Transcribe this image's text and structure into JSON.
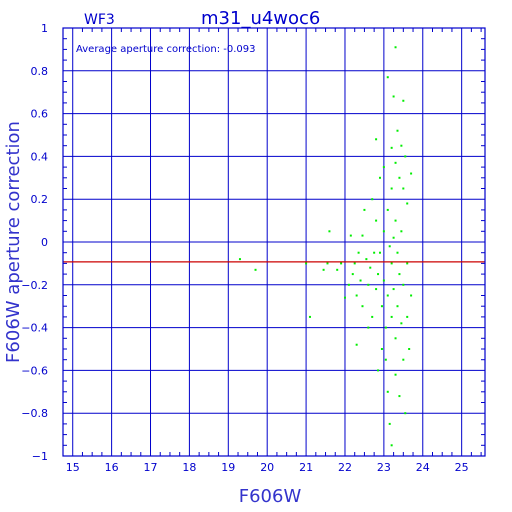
{
  "header": {
    "camera": "WF3",
    "title": "m31_u4woc6"
  },
  "annotation": "Average aperture correction: -0.093",
  "chart_data": {
    "type": "scatter",
    "title": "m31_u4woc6",
    "xlabel": "F606W",
    "ylabel": "F606W aperture correction",
    "xlim": [
      14.75,
      25.6
    ],
    "ylim": [
      -1,
      1
    ],
    "grid": true,
    "x_ticks": [
      "15",
      "16",
      "17",
      "18",
      "19",
      "20",
      "21",
      "22",
      "23",
      "24",
      "25"
    ],
    "y_ticks": [
      "1",
      "0.8",
      "0.6",
      "0.4",
      "0.2",
      "0",
      "−0.2",
      "−0.4",
      "−0.6",
      "−0.8",
      "−1"
    ],
    "reference_line": {
      "y": -0.093,
      "color": "#cc0000"
    },
    "colors": {
      "axes": "#0000cc",
      "points": "#00ee00",
      "line": "#cc0000"
    },
    "series": [
      {
        "points": [
          [
            19.3,
            -0.08
          ],
          [
            19.7,
            -0.13
          ],
          [
            21.0,
            -0.1
          ],
          [
            21.1,
            -0.35
          ],
          [
            21.45,
            -0.13
          ],
          [
            21.55,
            -0.1
          ],
          [
            21.6,
            0.05
          ],
          [
            21.8,
            -0.13
          ],
          [
            21.9,
            -0.1
          ],
          [
            22.0,
            -0.26
          ],
          [
            22.1,
            -0.2
          ],
          [
            22.15,
            0.03
          ],
          [
            22.2,
            -0.15
          ],
          [
            22.25,
            -0.1
          ],
          [
            22.3,
            -0.48
          ],
          [
            22.3,
            -0.25
          ],
          [
            22.35,
            -0.05
          ],
          [
            22.4,
            -0.18
          ],
          [
            22.45,
            0.03
          ],
          [
            22.45,
            -0.3
          ],
          [
            22.5,
            0.15
          ],
          [
            22.55,
            -0.08
          ],
          [
            22.6,
            -0.4
          ],
          [
            22.6,
            -0.2
          ],
          [
            22.65,
            -0.12
          ],
          [
            22.7,
            0.2
          ],
          [
            22.7,
            -0.35
          ],
          [
            22.75,
            -0.05
          ],
          [
            22.8,
            0.48
          ],
          [
            22.8,
            0.1
          ],
          [
            22.8,
            -0.22
          ],
          [
            22.85,
            -0.6
          ],
          [
            22.85,
            -0.15
          ],
          [
            22.9,
            0.3
          ],
          [
            22.9,
            -0.05
          ],
          [
            22.95,
            -0.3
          ],
          [
            22.95,
            -0.5
          ],
          [
            23.0,
            0.35
          ],
          [
            23.0,
            0.05
          ],
          [
            23.0,
            -0.18
          ],
          [
            23.05,
            -0.4
          ],
          [
            23.05,
            -0.55
          ],
          [
            23.1,
            0.77
          ],
          [
            23.1,
            0.15
          ],
          [
            23.1,
            -0.25
          ],
          [
            23.1,
            -0.7
          ],
          [
            23.15,
            -0.02
          ],
          [
            23.15,
            -0.85
          ],
          [
            23.2,
            0.44
          ],
          [
            23.2,
            0.25
          ],
          [
            23.2,
            -0.1
          ],
          [
            23.2,
            -0.35
          ],
          [
            23.2,
            -0.95
          ],
          [
            23.25,
            0.68
          ],
          [
            23.25,
            0.02
          ],
          [
            23.25,
            -0.22
          ],
          [
            23.3,
            0.91
          ],
          [
            23.3,
            0.37
          ],
          [
            23.3,
            0.1
          ],
          [
            23.3,
            -0.45
          ],
          [
            23.3,
            -0.62
          ],
          [
            23.35,
            0.52
          ],
          [
            23.35,
            -0.05
          ],
          [
            23.35,
            -0.3
          ],
          [
            23.4,
            0.3
          ],
          [
            23.4,
            -0.15
          ],
          [
            23.4,
            -0.72
          ],
          [
            23.45,
            0.45
          ],
          [
            23.45,
            0.05
          ],
          [
            23.45,
            -0.38
          ],
          [
            23.5,
            0.66
          ],
          [
            23.5,
            0.25
          ],
          [
            23.5,
            -0.2
          ],
          [
            23.5,
            -0.55
          ],
          [
            23.55,
            0.4
          ],
          [
            23.55,
            -0.8
          ],
          [
            23.6,
            0.18
          ],
          [
            23.6,
            -0.1
          ],
          [
            23.6,
            -0.35
          ],
          [
            23.65,
            -0.5
          ],
          [
            23.7,
            0.32
          ],
          [
            23.7,
            -0.25
          ]
        ]
      }
    ]
  }
}
